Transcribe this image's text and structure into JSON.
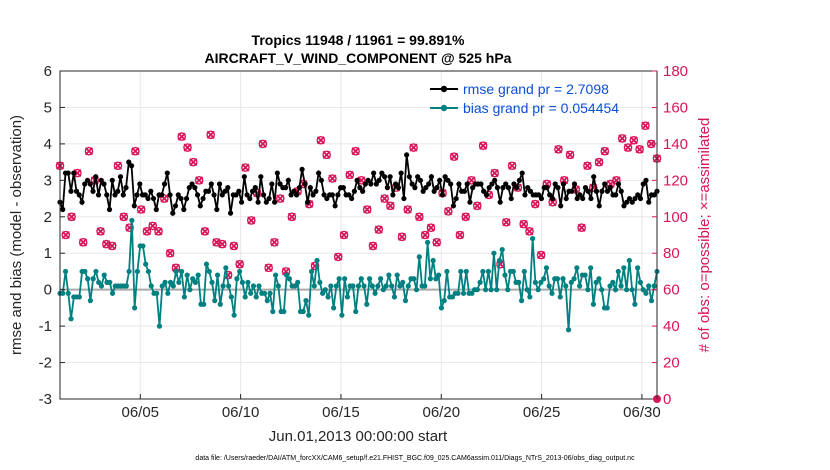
{
  "chart_data": {
    "type": "line",
    "title": "Tropics 11948 / 11961 = 99.891%",
    "subtitle": "AIRCRAFT_V_WIND_COMPONENT @ 525 hPa",
    "xlabel": "Jun.01,2013 00:00:00 start",
    "ylabel": "rmse and bias (model - observation)",
    "ylabel_right": "# of obs: o=possible; ×=assimilated",
    "footer": "data file: /Users/raeder/DAI/ATM_forcXX/CAM6_setup/f.e21.FHIST_BGC.f09_025.CAM6assim.011/Diags_NTrS_2013-06/obs_diag_output.nc",
    "x_range_days": [
      1,
      30.75
    ],
    "ylim": [
      -3,
      6
    ],
    "y_ticks": [
      "-3",
      "-2",
      "-1",
      "0",
      "1",
      "2",
      "3",
      "4",
      "5",
      "6"
    ],
    "ylim_right": [
      0,
      180
    ],
    "y_ticks_right": [
      "0",
      "20",
      "40",
      "60",
      "80",
      "100",
      "120",
      "140",
      "160",
      "180"
    ],
    "x_ticks": [
      {
        "day": 5,
        "label": "06/05"
      },
      {
        "day": 10,
        "label": "06/10"
      },
      {
        "day": 15,
        "label": "06/15"
      },
      {
        "day": 20,
        "label": "06/20"
      },
      {
        "day": 25,
        "label": "06/25"
      },
      {
        "day": 30,
        "label": "06/30"
      }
    ],
    "grid": true,
    "legend_position": "top-right",
    "colors": {
      "rmse": "#000000",
      "bias": "#008080",
      "obs": "#d6165a",
      "zero_line": "#aaaaaa",
      "legend_text": "#0b4fd6"
    },
    "series": [
      {
        "name": "rmse grand pr = 2.7098",
        "axis": "left",
        "values": [
          2.4,
          2.2,
          3.2,
          3.2,
          2.7,
          3.2,
          2.7,
          2.6,
          2.4,
          2.9,
          3.0,
          2.9,
          2.7,
          3.1,
          2.6,
          3.0,
          2.9,
          2.6,
          2.2,
          3.0,
          2.6,
          2.7,
          3.1,
          2.6,
          2.8,
          3.5,
          3.4,
          2.3,
          2.6,
          2.9,
          2.6,
          2.6,
          2.5,
          2.7,
          2.5,
          2.2,
          2.6,
          2.6,
          2.9,
          3.2,
          2.6,
          2.1,
          2.3,
          2.6,
          2.5,
          2.2,
          2.5,
          2.8,
          2.9,
          2.8,
          2.6,
          2.3,
          2.5,
          2.7,
          2.7,
          2.9,
          2.6,
          2.2,
          2.9,
          2.6,
          2.7,
          2.8,
          2.1,
          2.6,
          2.6,
          2.7,
          2.4,
          3.1,
          2.6,
          2.5,
          2.7,
          2.8,
          2.4,
          3.1,
          2.6,
          2.4,
          2.5,
          2.9,
          2.4,
          3.2,
          2.9,
          2.8,
          2.8,
          3.0,
          2.6,
          2.7,
          2.6,
          2.8,
          3.3,
          2.9,
          2.4,
          2.8,
          2.6,
          2.7,
          3.2,
          3.0,
          2.6,
          2.5,
          2.6,
          2.6,
          2.3,
          2.6,
          2.8,
          2.8,
          2.6,
          2.6,
          2.5,
          2.7,
          3.0,
          2.8,
          2.7,
          2.9,
          3.0,
          2.9,
          3.2,
          2.9,
          3.0,
          3.2,
          3.1,
          2.8,
          3.1,
          2.6,
          2.9,
          2.8,
          3.2,
          2.5,
          3.7,
          3.1,
          2.9,
          2.8,
          3.1,
          3.0,
          2.7,
          2.8,
          2.9,
          3.1,
          2.7,
          2.8,
          3.0,
          2.6,
          3.1,
          3.0,
          2.9,
          2.3,
          2.5,
          2.9,
          2.7,
          2.7,
          2.9,
          2.4,
          2.8,
          2.9,
          2.9,
          2.9,
          2.7,
          2.6,
          2.8,
          2.9,
          3.0,
          2.8,
          2.4,
          2.8,
          2.9,
          2.8,
          2.5,
          2.9,
          2.8,
          3.0,
          3.2,
          2.6,
          2.8,
          2.7,
          2.6,
          2.6,
          2.6,
          2.5,
          2.8,
          2.8,
          2.6,
          2.5,
          2.9,
          2.8,
          2.3,
          2.9,
          2.5,
          2.7,
          2.7,
          2.9,
          2.5,
          2.6,
          2.5,
          2.8,
          2.7,
          2.5,
          3.1,
          2.7,
          2.3,
          2.7,
          2.9,
          2.7,
          2.8,
          2.6,
          2.6,
          2.9,
          2.7,
          2.3,
          2.4,
          2.5,
          2.4,
          2.5,
          2.6,
          2.5,
          2.9,
          3.0,
          2.4,
          2.6,
          2.6,
          2.7
        ]
      },
      {
        "name": "bias grand pr = 0.054454",
        "axis": "left",
        "values": [
          -0.1,
          -0.1,
          0.5,
          -0.1,
          -0.8,
          -0.2,
          -0.2,
          -0.2,
          0.5,
          0.5,
          0.3,
          -0.3,
          0.3,
          0.5,
          0.2,
          0.1,
          0.4,
          0.2,
          0.2,
          -0.1,
          0.1,
          0.1,
          0.1,
          0.1,
          0.1,
          0.5,
          1.9,
          -0.5,
          0.5,
          1.2,
          1.2,
          0.7,
          0.5,
          0.1,
          -0.1,
          -0.1,
          -1.0,
          0.1,
          0.2,
          -0.1,
          0.2,
          0.1,
          0.5,
          0.2,
          0.5,
          -0.2,
          0.4,
          0.0,
          0.3,
          0.2,
          0.4,
          -0.4,
          -0.4,
          0.7,
          0.5,
          0.2,
          -0.3,
          0.4,
          -0.4,
          0.1,
          0.6,
          0.1,
          -0.2,
          -0.7,
          0.3,
          0.5,
          0.2,
          -0.2,
          0.2,
          -0.1,
          0.1,
          -0.2,
          0.1,
          -0.1,
          -0.1,
          -0.3,
          -0.1,
          -0.6,
          0.4,
          0.1,
          -0.6,
          -0.6,
          0.4,
          0.3,
          0.1,
          0.1,
          0.2,
          -0.6,
          -0.6,
          -0.3,
          -0.7,
          0.5,
          0.1,
          0.8,
          0.2,
          -0.1,
          0.0,
          -0.2,
          0.1,
          -0.5,
          0.1,
          0.3,
          -0.7,
          0.3,
          -0.2,
          0.1,
          0.1,
          -0.6,
          0.1,
          0.3,
          0.1,
          -0.4,
          0.3,
          0.1,
          -0.1,
          0.1,
          0.3,
          0.0,
          0.1,
          0.4,
          0.1,
          -0.2,
          0.4,
          0.1,
          0.2,
          -0.3,
          0.1,
          0.3,
          0.3,
          0.0,
          0.9,
          0.1,
          0.1,
          1.3,
          0.3,
          0.8,
          0.3,
          0.4,
          -0.5,
          -0.3,
          0.5,
          -0.2,
          -0.2,
          -0.1,
          -0.1,
          0.5,
          -0.1,
          0.5,
          -0.1,
          -0.1,
          0.0,
          0.0,
          0.2,
          0.5,
          0.0,
          0.5,
          0.0,
          1.0,
          0.0,
          0.8,
          1.1,
          0.4,
          0.0,
          0.5,
          0.5,
          0.2,
          0.2,
          -0.3,
          0.5,
          0.0,
          -0.2,
          1.4,
          0.2,
          0.0,
          0.2,
          0.3,
          0.6,
          0.1,
          -0.1,
          0.3,
          0.3,
          -0.2,
          0.3,
          0.1,
          -1.1,
          0.2,
          0.3,
          0.6,
          0.1,
          0.4,
          0.4,
          0.0,
          0.6,
          -0.4,
          0.2,
          0.3,
          0.0,
          -0.5,
          -0.5,
          0.1,
          0.2,
          0.0,
          0.5,
          0.1,
          0.6,
          0.0,
          0.8,
          0.0,
          -0.4,
          0.6,
          0.2,
          0.0,
          -0.1,
          0.1,
          -0.3,
          0.1,
          0.5
        ]
      },
      {
        "name": "obs possible",
        "axis": "right",
        "marker": "o",
        "values": [
          128,
          90,
          100,
          124,
          86,
          136,
          120,
          92,
          85,
          84,
          128,
          100,
          94,
          136,
          104,
          92,
          95,
          92,
          110,
          80,
          72,
          144,
          138,
          130,
          120,
          92,
          145,
          86,
          85,
          68,
          84,
          74,
          127,
          98,
          113,
          140,
          72,
          86,
          110,
          70,
          100,
          114,
          118,
          107,
          73,
          142,
          134,
          121,
          78,
          90,
          123,
          136,
          120,
          104,
          84,
          93,
          110,
          106,
          116,
          89,
          104,
          138,
          100,
          90,
          94,
          86,
          113,
          103,
          133,
          90,
          100,
          120,
          106,
          139,
          112,
          124,
          74,
          97,
          128,
          116,
          96,
          92,
          107,
          79,
          118,
          108,
          137,
          120,
          134,
          115,
          94,
          128,
          116,
          130,
          136,
          118,
          120,
          143,
          138,
          142,
          137,
          150,
          140,
          132
        ]
      },
      {
        "name": "obs assimilated",
        "axis": "right",
        "marker": "x",
        "values": [
          128,
          90,
          100,
          124,
          86,
          136,
          120,
          92,
          85,
          84,
          128,
          100,
          94,
          136,
          104,
          92,
          95,
          92,
          110,
          80,
          72,
          144,
          138,
          130,
          120,
          92,
          145,
          86,
          85,
          68,
          84,
          74,
          127,
          98,
          113,
          140,
          72,
          86,
          110,
          70,
          100,
          114,
          118,
          107,
          73,
          142,
          134,
          121,
          78,
          90,
          123,
          136,
          120,
          104,
          84,
          93,
          110,
          106,
          116,
          89,
          104,
          138,
          100,
          90,
          94,
          86,
          113,
          103,
          133,
          90,
          100,
          120,
          106,
          139,
          112,
          124,
          74,
          97,
          128,
          116,
          96,
          92,
          107,
          79,
          118,
          108,
          137,
          120,
          134,
          115,
          94,
          128,
          116,
          130,
          136,
          118,
          120,
          143,
          138,
          142,
          137,
          150,
          140,
          132
        ]
      }
    ]
  }
}
